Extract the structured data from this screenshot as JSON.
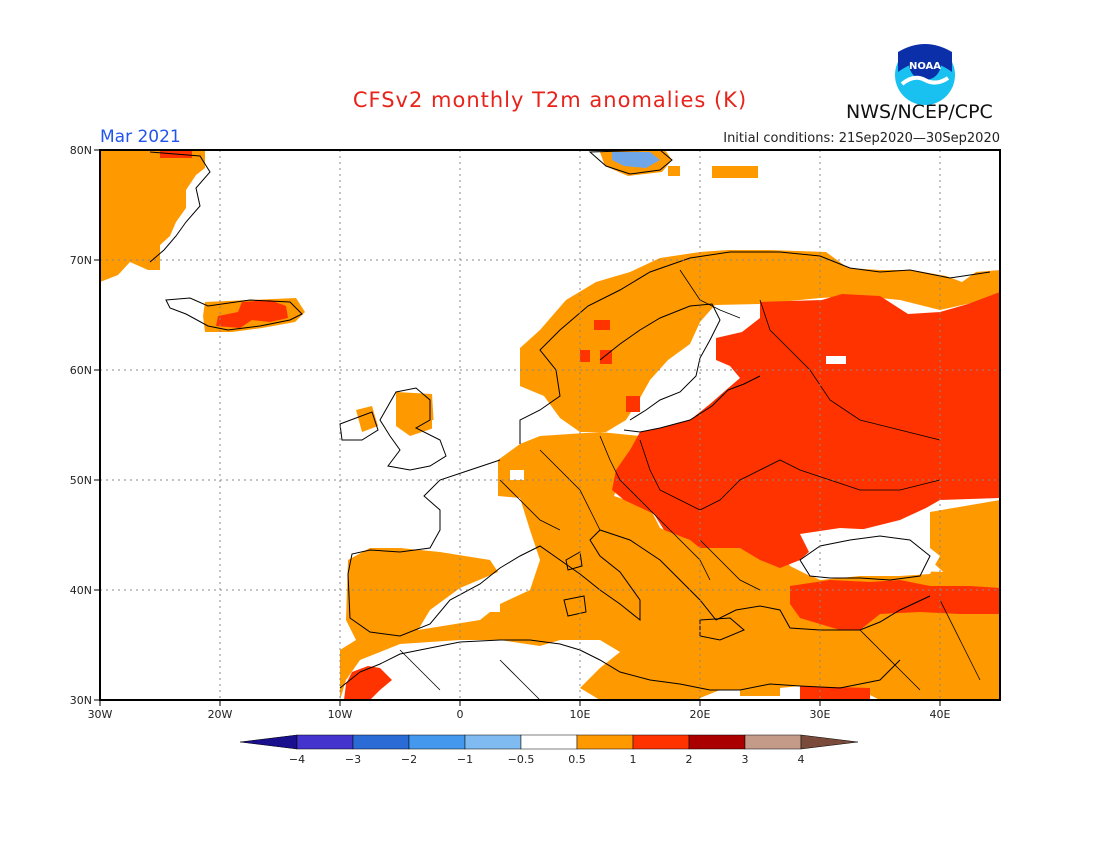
{
  "title": "CFSv2 monthly T2m anomalies (K)",
  "month": "Mar 2021",
  "initial_conditions": "Initial conditions: 21Sep2020—30Sep2020",
  "organization": "NWS/NCEP/CPC",
  "logo_text": "NOAA",
  "lat_labels": [
    "80N",
    "70N",
    "60N",
    "50N",
    "40N",
    "30N"
  ],
  "lon_labels": [
    "30W",
    "20W",
    "10W",
    "0",
    "10E",
    "20E",
    "30E",
    "40E"
  ],
  "colorbar": {
    "tick_labels": [
      "−4",
      "−3",
      "−2",
      "−1",
      "−0.5",
      "0.5",
      "1",
      "2",
      "3",
      "4"
    ],
    "colors": [
      "#1a0f8c",
      "#4433cc",
      "#2b6bd6",
      "#4499ee",
      "#7fbbf0",
      "#ffffff",
      "#ff9900",
      "#ff3300",
      "#aa0000",
      "#c49a88",
      "#7a4a3a"
    ]
  },
  "colors": {
    "light_positive": "#ff9900",
    "strong_positive": "#ff3300",
    "negative": "#6fa6e8",
    "title": "#e8231a",
    "month": "#2255ee"
  }
}
